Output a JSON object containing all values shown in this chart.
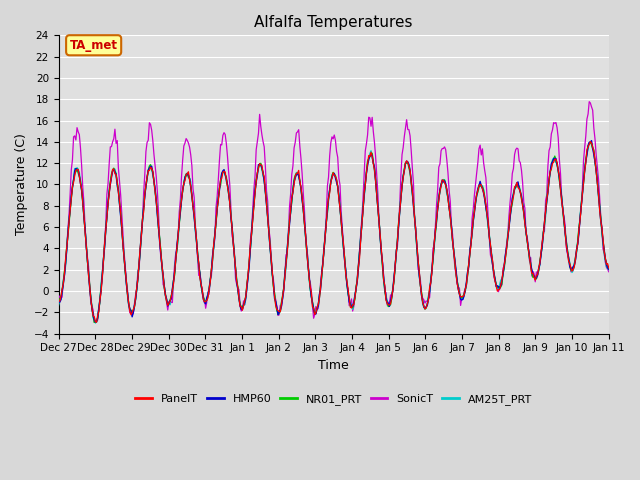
{
  "title": "Alfalfa Temperatures",
  "xlabel": "Time",
  "ylabel": "Temperature (C)",
  "ylim": [
    -4,
    24
  ],
  "yticks": [
    -4,
    -2,
    0,
    2,
    4,
    6,
    8,
    10,
    12,
    14,
    16,
    18,
    20,
    22,
    24
  ],
  "x_labels": [
    "Dec 27",
    "Dec 28",
    "Dec 29",
    "Dec 30",
    "Dec 31",
    "Jan 1",
    "Jan 2",
    "Jan 3",
    "Jan 4",
    "Jan 5",
    "Jan 6",
    "Jan 7",
    "Jan 8",
    "Jan 9",
    "Jan 10",
    "Jan 11"
  ],
  "series_colors": {
    "PanelT": "#ff0000",
    "HMP60": "#0000cc",
    "NR01_PRT": "#00cc00",
    "SonicT": "#cc00cc",
    "AM25T_PRT": "#00cccc"
  },
  "annotation_text": "TA_met",
  "annotation_box_color": "#ffff99",
  "annotation_border_color": "#cc6600",
  "annotation_text_color": "#cc0000",
  "fig_bg_color": "#d8d8d8",
  "plot_bg_color": "#e0e0e0",
  "n_points": 480,
  "num_days": 15,
  "num_ticks": 16
}
